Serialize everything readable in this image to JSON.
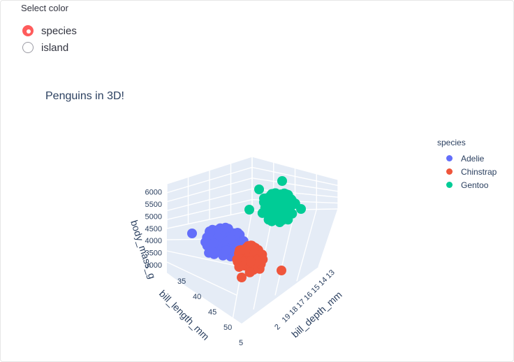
{
  "widget": {
    "label": "Select color",
    "options": [
      {
        "label": "species",
        "selected": true
      },
      {
        "label": "island",
        "selected": false
      }
    ],
    "accent_color": "#ff4b4b"
  },
  "chart_data": {
    "type": "scatter",
    "title": "Penguins in 3D!",
    "legend_title": "species",
    "legend_placement": "right",
    "series": [
      {
        "name": "Adelie",
        "color": "#636efa",
        "bill_length_mm": [
          32.1,
          46
        ],
        "bill_depth_mm": [
          15.5,
          21.5
        ],
        "body_mass_g": [
          2850,
          4775
        ]
      },
      {
        "name": "Chinstrap",
        "color": "#ef553b",
        "bill_length_mm": [
          40.9,
          58
        ],
        "bill_depth_mm": [
          16.4,
          20.8
        ],
        "body_mass_g": [
          2700,
          4800
        ]
      },
      {
        "name": "Gentoo",
        "color": "#00cc96",
        "bill_length_mm": [
          40.9,
          59.6
        ],
        "bill_depth_mm": [
          13.1,
          17.3
        ],
        "body_mass_g": [
          3950,
          6300
        ]
      }
    ],
    "axes": {
      "x": {
        "label": "bill_length_mm",
        "ticks": [
          "35",
          "40",
          "45",
          "50",
          "5"
        ]
      },
      "y": {
        "label": "bill_depth_mm",
        "ticks": [
          "13",
          "14",
          "15",
          "16",
          "17",
          "18",
          "19",
          "2"
        ]
      },
      "z": {
        "label": "body_mass_g",
        "ticks": [
          "3000",
          "3500",
          "4000",
          "4500",
          "5000",
          "5500",
          "6000"
        ]
      }
    },
    "grid": true,
    "scene_background": "#e5ecf6"
  }
}
